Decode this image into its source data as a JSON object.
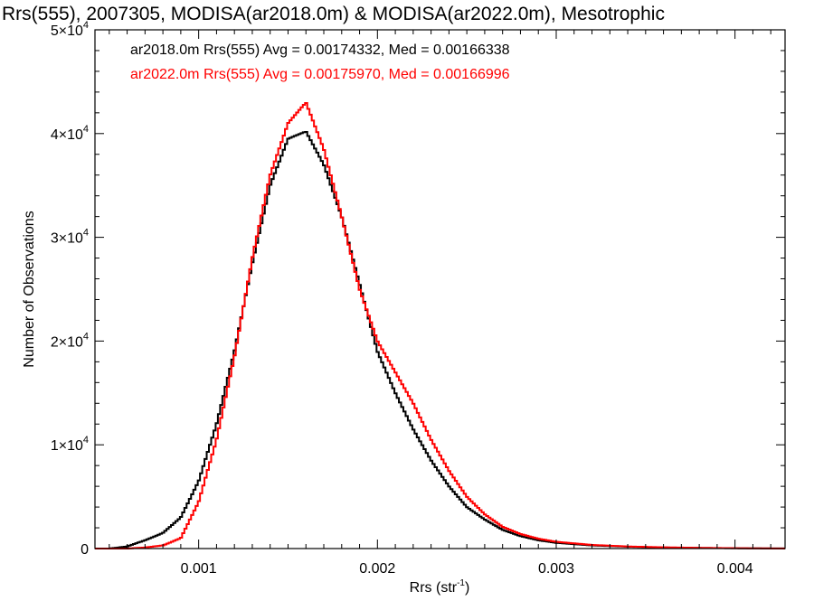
{
  "chart_data": {
    "type": "line",
    "title": "Rrs(555), 2007305, MODISA(ar2018.0m) & MODISA(ar2022.0m), Mesotrophic",
    "xlabel": "Rrs (str",
    "xlabel_superscript": "-1",
    "xlabel_close": ")",
    "ylabel": "Number of Observations",
    "xlim": [
      0.00042,
      0.00428
    ],
    "ylim": [
      0,
      50000
    ],
    "step_plot": true,
    "grid": false,
    "x_ticks": [
      {
        "value": 0.001,
        "label": "0.001"
      },
      {
        "value": 0.002,
        "label": "0.002"
      },
      {
        "value": 0.003,
        "label": "0.003"
      },
      {
        "value": 0.004,
        "label": "0.004"
      }
    ],
    "y_ticks": [
      {
        "value": 0,
        "mantissa": "0",
        "exponent": ""
      },
      {
        "value": 10000,
        "mantissa": "1×10",
        "exponent": "4"
      },
      {
        "value": 20000,
        "mantissa": "2×10",
        "exponent": "4"
      },
      {
        "value": 30000,
        "mantissa": "3×10",
        "exponent": "4"
      },
      {
        "value": 40000,
        "mantissa": "4×10",
        "exponent": "4"
      },
      {
        "value": 50000,
        "mantissa": "5×10",
        "exponent": "4"
      }
    ],
    "annotations": [
      {
        "text": "ar2018.0m Rrs(555) Avg = 0.00174332, Med = 0.00166338",
        "color": "#000000"
      },
      {
        "text": "ar2022.0m Rrs(555) Avg = 0.00175970, Med = 0.00166996",
        "color": "#ff0000"
      }
    ],
    "series": [
      {
        "color": "#000000",
        "points": [
          [
            0.00042,
            0
          ],
          [
            0.0005,
            0
          ],
          [
            0.0006,
            200
          ],
          [
            0.0007,
            800
          ],
          [
            0.0008,
            1500
          ],
          [
            0.0009,
            3000
          ],
          [
            0.001,
            6500
          ],
          [
            0.0011,
            12000
          ],
          [
            0.0012,
            19000
          ],
          [
            0.0013,
            27500
          ],
          [
            0.0014,
            35000
          ],
          [
            0.0015,
            39500
          ],
          [
            0.0016,
            40200
          ],
          [
            0.0017,
            37000
          ],
          [
            0.0018,
            32000
          ],
          [
            0.0019,
            25500
          ],
          [
            0.002,
            19000
          ],
          [
            0.0021,
            15000
          ],
          [
            0.0022,
            11500
          ],
          [
            0.0023,
            8500
          ],
          [
            0.0024,
            6000
          ],
          [
            0.0025,
            4000
          ],
          [
            0.0026,
            2800
          ],
          [
            0.0027,
            1800
          ],
          [
            0.0028,
            1200
          ],
          [
            0.0029,
            800
          ],
          [
            0.003,
            550
          ],
          [
            0.0032,
            300
          ],
          [
            0.0034,
            180
          ],
          [
            0.0036,
            100
          ],
          [
            0.0038,
            60
          ],
          [
            0.004,
            30
          ],
          [
            0.0042,
            10
          ],
          [
            0.00428,
            5
          ]
        ]
      },
      {
        "color": "#ff0000",
        "points": [
          [
            0.00042,
            0
          ],
          [
            0.0005,
            0
          ],
          [
            0.0006,
            0
          ],
          [
            0.0007,
            100
          ],
          [
            0.0008,
            300
          ],
          [
            0.0009,
            1000
          ],
          [
            0.001,
            4500
          ],
          [
            0.0011,
            10500
          ],
          [
            0.0012,
            18500
          ],
          [
            0.0013,
            28000
          ],
          [
            0.0014,
            36000
          ],
          [
            0.0015,
            41000
          ],
          [
            0.0016,
            43000
          ],
          [
            0.0017,
            38500
          ],
          [
            0.0018,
            32000
          ],
          [
            0.0019,
            25000
          ],
          [
            0.002,
            20000
          ],
          [
            0.0021,
            17000
          ],
          [
            0.0022,
            14000
          ],
          [
            0.0023,
            10500
          ],
          [
            0.0024,
            7500
          ],
          [
            0.0025,
            5000
          ],
          [
            0.0026,
            3300
          ],
          [
            0.0027,
            2100
          ],
          [
            0.0028,
            1400
          ],
          [
            0.0029,
            950
          ],
          [
            0.003,
            650
          ],
          [
            0.0032,
            350
          ],
          [
            0.0034,
            200
          ],
          [
            0.0036,
            120
          ],
          [
            0.0038,
            70
          ],
          [
            0.004,
            35
          ],
          [
            0.0042,
            15
          ],
          [
            0.00428,
            8
          ]
        ]
      }
    ]
  }
}
